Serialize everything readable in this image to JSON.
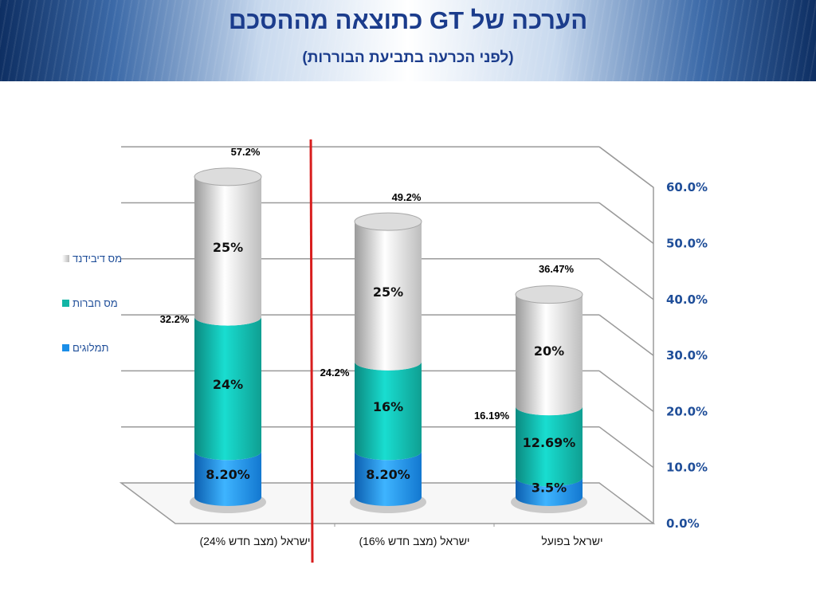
{
  "title": "הערכה של GT כתוצאה מההסכם",
  "subtitle": "(לפני הכרעה בתביעת הבוררות)",
  "chart_data": {
    "type": "bar",
    "stacked": true,
    "style": "3d-cylinder",
    "categories": [
      "ישראל (מצב חדש 24%)",
      "ישראל (מצב חדש 16%)",
      "ישראל בפועל"
    ],
    "series": [
      {
        "name": "תמלוגים",
        "color": "#1a8ee8",
        "values": [
          8.2,
          8.2,
          3.5
        ],
        "labels": [
          "8.20%",
          "8.20%",
          "3.5%"
        ]
      },
      {
        "name": "מס חברות",
        "color": "#12b5a5",
        "values": [
          24,
          16,
          12.69
        ],
        "labels": [
          "24%",
          "16%",
          "12.69%"
        ]
      },
      {
        "name": "מס דיבידנד",
        "color": "#d6d6d6",
        "values": [
          25,
          25,
          20
        ],
        "labels": [
          "25%",
          "25%",
          "20%"
        ]
      }
    ],
    "totals": [
      "57.2%",
      "49.2%",
      "36.47%"
    ],
    "subtotals": [
      "32.2%",
      "24.2%",
      "16.19%"
    ],
    "yaxis": {
      "ticks": [
        "0.0%",
        "10.0%",
        "20.0%",
        "30.0%",
        "40.0%",
        "50.0%",
        "60.0%"
      ],
      "min": 0,
      "max": 60,
      "position": "right"
    },
    "grid": true,
    "legend_position": "left",
    "separator_line_color": "#d81e1e"
  }
}
